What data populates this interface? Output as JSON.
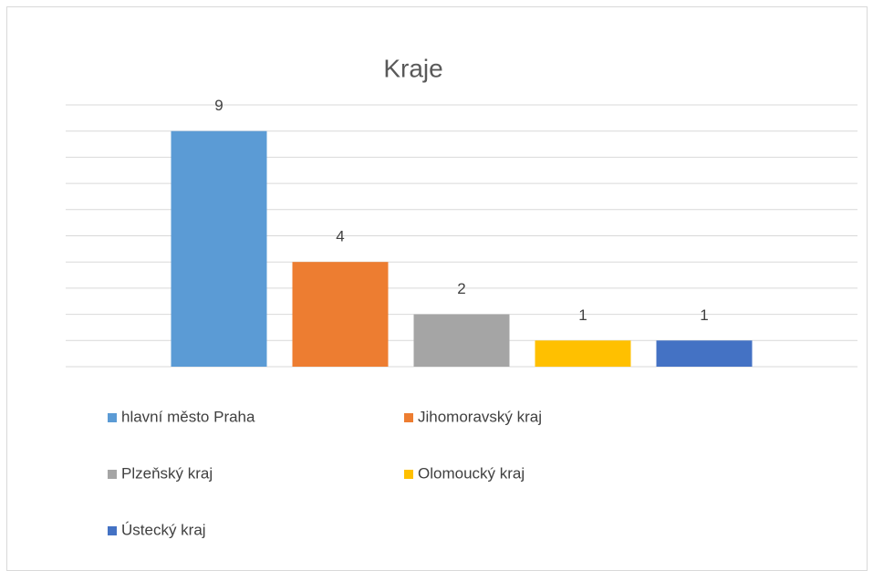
{
  "chart_data": {
    "type": "bar",
    "title": "Kraje",
    "categories": [
      null
    ],
    "series": [
      {
        "name": "hlavní město Praha",
        "color": "#5b9bd5",
        "values": [
          9
        ]
      },
      {
        "name": "Jihomoravský kraj",
        "color": "#ed7d31",
        "values": [
          4
        ]
      },
      {
        "name": "Plzeňský kraj",
        "color": "#a5a5a5",
        "values": [
          2
        ]
      },
      {
        "name": "Olomoucký kraj",
        "color": "#ffc000",
        "values": [
          1
        ]
      },
      {
        "name": "Ústecký kraj",
        "color": "#4472c4",
        "values": [
          1
        ]
      }
    ],
    "ylim": [
      0,
      10
    ],
    "yticks": [
      0,
      1,
      2,
      3,
      4,
      5,
      6,
      7,
      8,
      9,
      10
    ],
    "grid": true,
    "legend": "bottom"
  }
}
